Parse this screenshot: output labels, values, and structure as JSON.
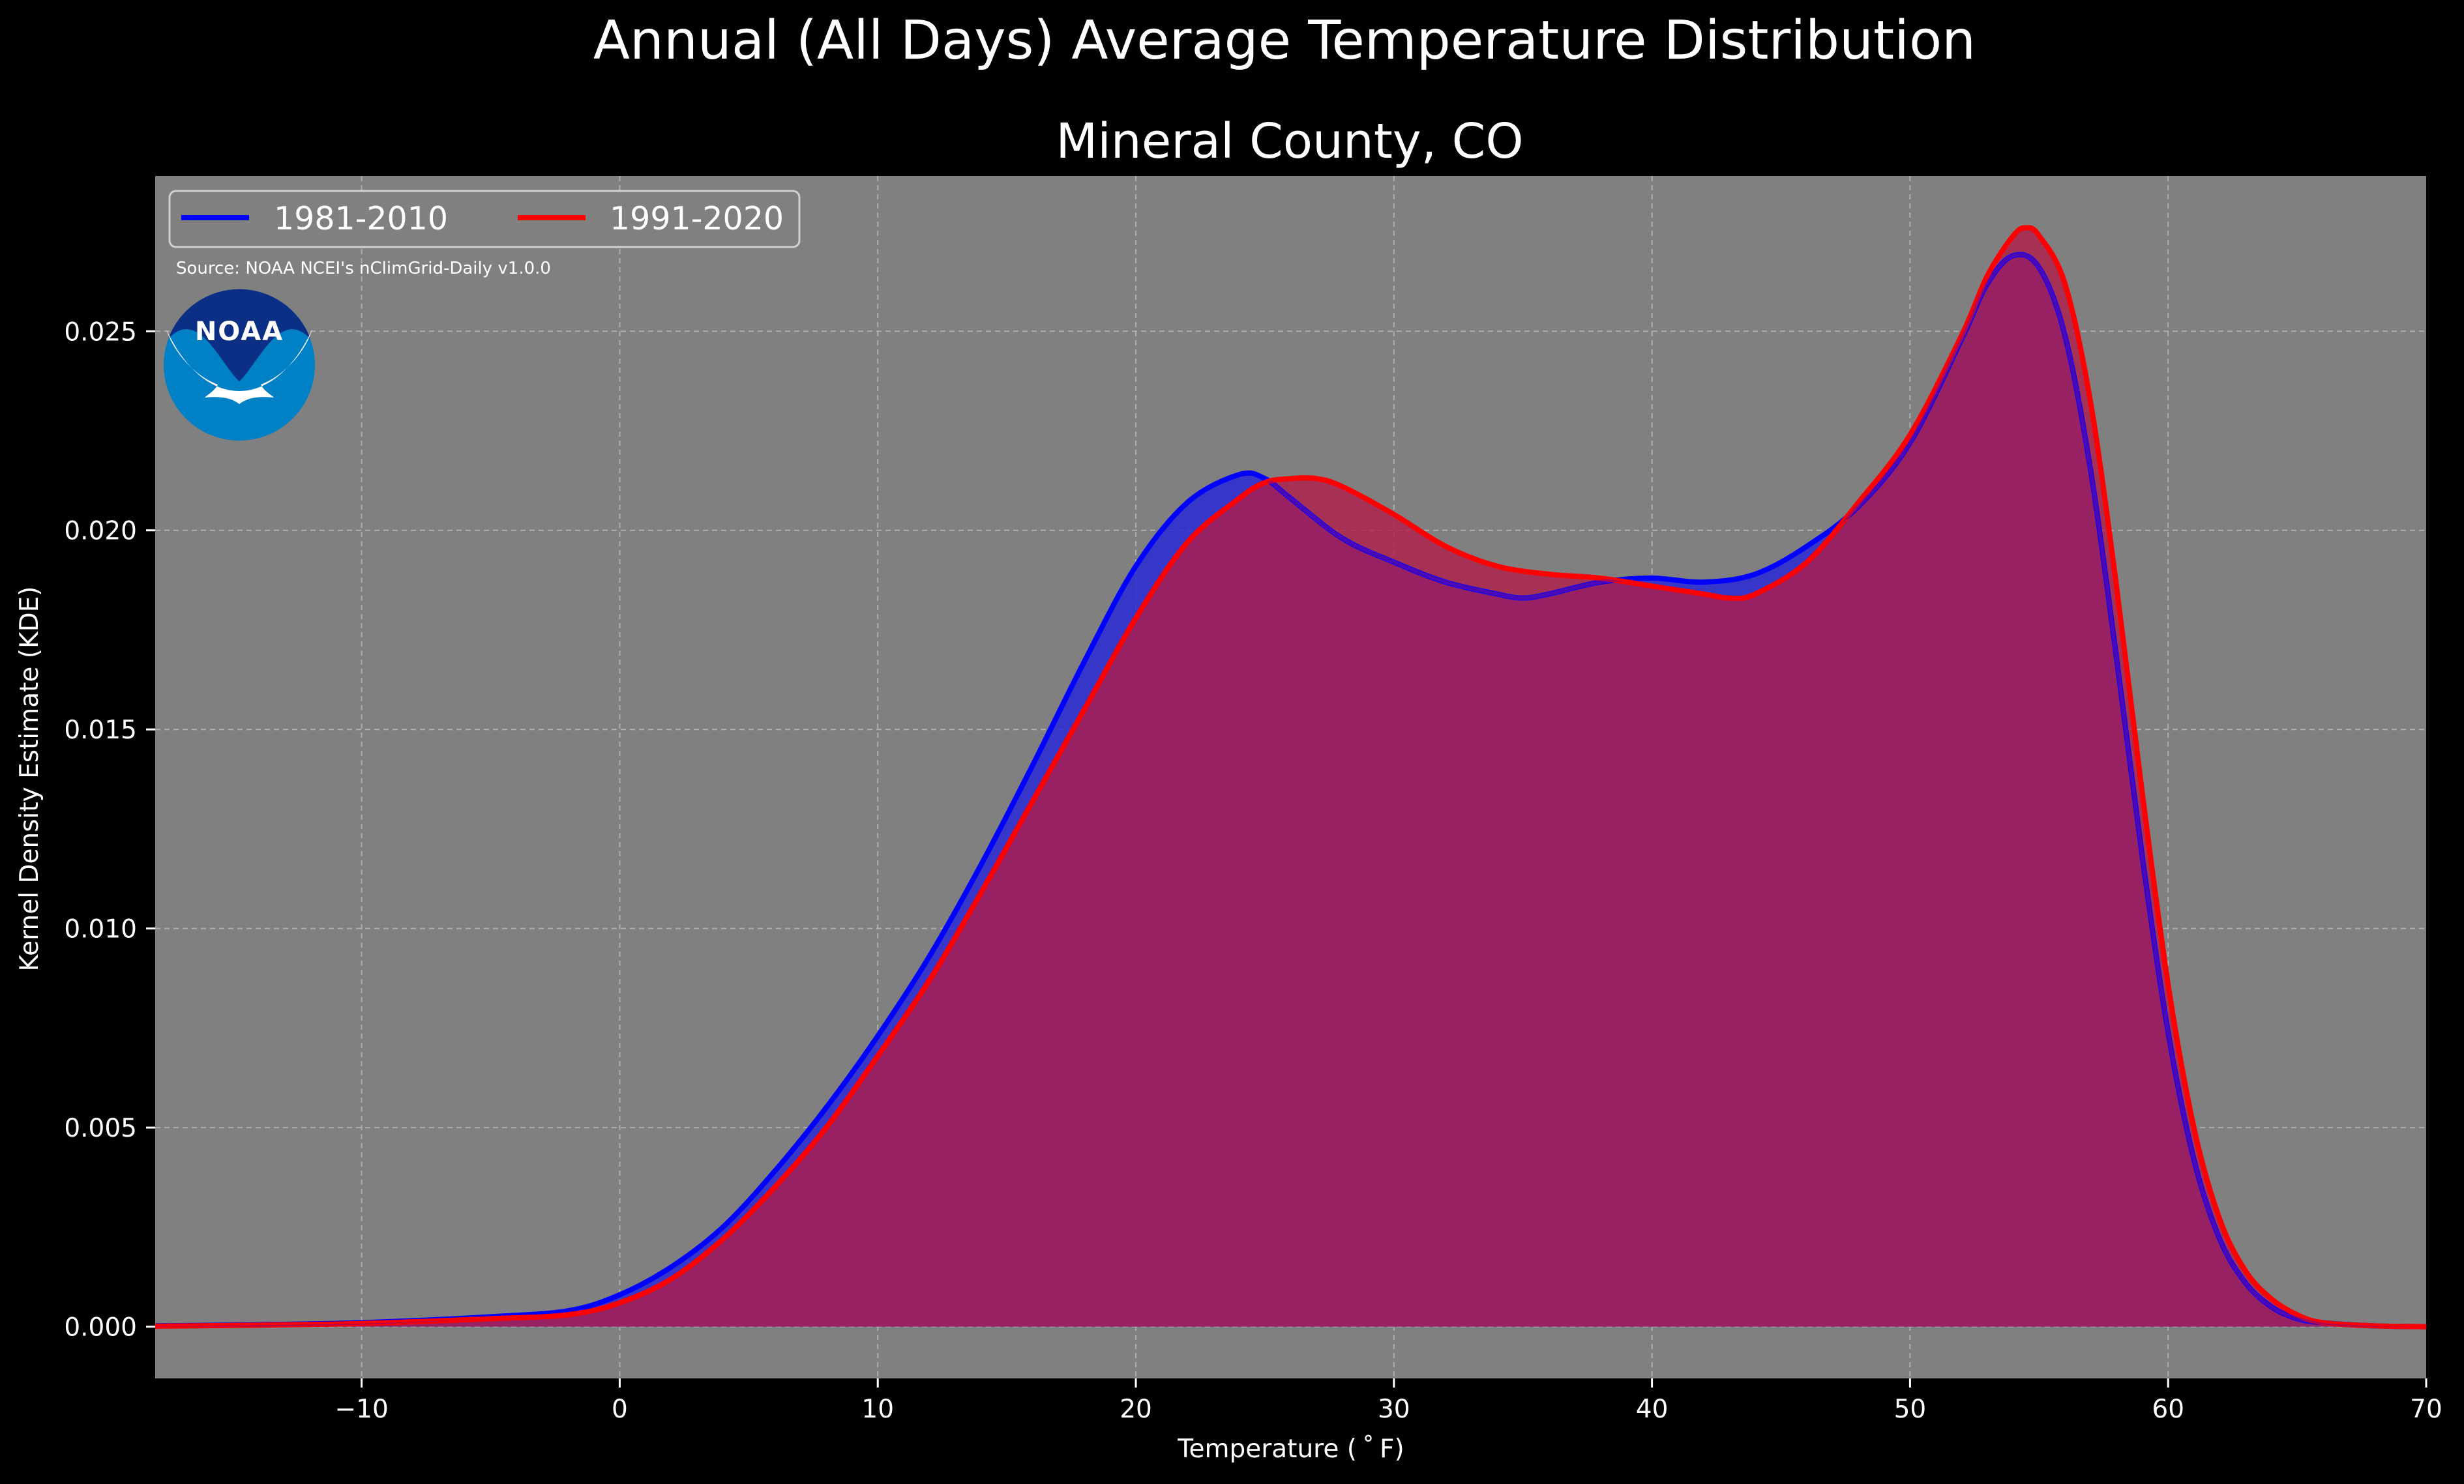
{
  "chart_data": {
    "type": "area",
    "title": "Annual (All Days) Average Temperature Distribution",
    "subtitle": "Mineral County, CO",
    "xlabel": "Temperature ($^\\circ$F)",
    "xlabel_display": "Temperature ( ˚ F)",
    "ylabel": "Kernel Density Estimate (KDE)",
    "xlim": [
      -18,
      70
    ],
    "ylim": [
      -0.0013,
      0.0289
    ],
    "xticks": [
      -10,
      0,
      10,
      20,
      30,
      40,
      50,
      60,
      70
    ],
    "xtick_labels": [
      "−10",
      "0",
      "10",
      "20",
      "30",
      "40",
      "50",
      "60",
      "70"
    ],
    "yticks": [
      0.0,
      0.005,
      0.01,
      0.015,
      0.02,
      0.025
    ],
    "ytick_labels": [
      "0.000",
      "0.005",
      "0.010",
      "0.015",
      "0.020",
      "0.025"
    ],
    "grid": true,
    "legend_position": "top-left",
    "source": "Source: NOAA NCEI's nClimGrid-Daily v1.0.0",
    "logo_text": "NOAA",
    "colors": {
      "page_background": "#000000",
      "plot_background": "#808080",
      "text": "#ffffff",
      "logo_outer": "#0081c6",
      "logo_inner": "#0b2f85"
    },
    "series": [
      {
        "name": "1981-2010",
        "color": "#0000ff",
        "fill_color": "#2929d6",
        "x": [
          -18,
          -15,
          -10,
          -5,
          -2,
          0,
          2,
          4,
          6,
          8,
          10,
          12,
          14,
          16,
          18,
          20,
          22,
          24,
          25,
          26,
          28,
          30,
          32,
          34,
          35,
          36,
          38,
          40,
          42,
          44,
          46,
          48,
          50,
          52,
          53,
          54,
          55,
          56,
          57,
          58,
          59,
          60,
          61,
          62,
          63,
          64,
          65,
          66,
          68,
          70
        ],
        "y": [
          2e-05,
          4e-05,
          0.0001,
          0.00025,
          0.0004,
          0.0008,
          0.0015,
          0.0025,
          0.0039,
          0.0055,
          0.0073,
          0.0093,
          0.0116,
          0.0141,
          0.0167,
          0.0191,
          0.0207,
          0.0214,
          0.0213,
          0.0208,
          0.0198,
          0.0192,
          0.0187,
          0.0184,
          0.0183,
          0.0184,
          0.0187,
          0.0188,
          0.0187,
          0.0189,
          0.0196,
          0.0206,
          0.0222,
          0.0248,
          0.0262,
          0.0269,
          0.0266,
          0.0249,
          0.0215,
          0.0168,
          0.0118,
          0.0074,
          0.0042,
          0.0022,
          0.0011,
          0.0005,
          0.0002,
          0.0001,
          2e-05,
          0.0
        ]
      },
      {
        "name": "1991-2020",
        "color": "#ff0000",
        "fill_color": "#b01d49",
        "x": [
          -18,
          -15,
          -10,
          -5,
          -2,
          0,
          2,
          4,
          6,
          8,
          10,
          12,
          14,
          16,
          18,
          20,
          22,
          24,
          25,
          26,
          27,
          28,
          30,
          32,
          34,
          36,
          38,
          40,
          42,
          43,
          44,
          46,
          48,
          50,
          52,
          53,
          54,
          54.5,
          55,
          56,
          57,
          58,
          59,
          60,
          61,
          62,
          63,
          64,
          65,
          66,
          68,
          70
        ],
        "y": [
          1e-05,
          3e-05,
          8e-05,
          0.0002,
          0.0003,
          0.0006,
          0.0012,
          0.0022,
          0.0035,
          0.005,
          0.0068,
          0.0087,
          0.0109,
          0.0132,
          0.0155,
          0.0178,
          0.0197,
          0.0208,
          0.0212,
          0.0213,
          0.0213,
          0.0211,
          0.0204,
          0.0196,
          0.0191,
          0.0189,
          0.0188,
          0.0186,
          0.0184,
          0.0183,
          0.0184,
          0.0192,
          0.0207,
          0.0224,
          0.0249,
          0.0264,
          0.0274,
          0.0276,
          0.0274,
          0.0262,
          0.0232,
          0.0186,
          0.0134,
          0.0086,
          0.005,
          0.0027,
          0.0014,
          0.0007,
          0.0003,
          0.0001,
          2e-05,
          0.0
        ]
      }
    ]
  }
}
